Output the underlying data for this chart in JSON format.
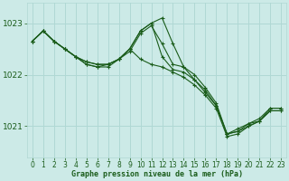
{
  "bg_color": "#cceae7",
  "grid_color": "#b0d8d4",
  "line_color": "#1a5c1a",
  "marker_color": "#1a5c1a",
  "xlabel": "Graphe pression niveau de la mer (hPa)",
  "xlabel_color": "#1a5c1a",
  "tick_color": "#1a5c1a",
  "series": [
    [
      1022.65,
      1022.85,
      1022.65,
      1022.5,
      1022.35,
      1022.25,
      1022.2,
      1022.2,
      1022.3,
      1022.5,
      1022.85,
      1023.0,
      1023.1,
      1022.6,
      1022.15,
      1021.9,
      1021.7,
      1021.4,
      1020.85,
      1020.95,
      1021.05,
      1021.15,
      1021.35,
      1021.35
    ],
    [
      1022.65,
      1022.85,
      1022.65,
      1022.5,
      1022.35,
      1022.25,
      1022.2,
      1022.2,
      1022.3,
      1022.5,
      1022.85,
      1023.0,
      1022.35,
      1022.1,
      1022.05,
      1021.9,
      1021.65,
      1021.4,
      1020.85,
      1020.9,
      1021.0,
      1021.1,
      1021.3,
      1021.3
    ],
    [
      1022.65,
      1022.85,
      1022.65,
      1022.5,
      1022.35,
      1022.2,
      1022.15,
      1022.2,
      1022.3,
      1022.5,
      1022.3,
      1022.2,
      1022.15,
      1022.05,
      1021.95,
      1021.8,
      1021.6,
      1021.35,
      1020.8,
      1020.85,
      1021.0,
      1021.1,
      1021.3,
      1021.3
    ],
    [
      1022.65,
      1022.85,
      1022.65,
      1022.5,
      1022.35,
      1022.2,
      1022.15,
      1022.15,
      1022.3,
      1022.45,
      1022.8,
      1022.95,
      1022.6,
      1022.2,
      1022.15,
      1022.0,
      1021.75,
      1021.45,
      1020.85,
      1020.9,
      1021.05,
      1021.1,
      1021.35,
      1021.35
    ]
  ],
  "yticks": [
    1021,
    1022,
    1023
  ],
  "ylim": [
    1020.4,
    1023.4
  ],
  "xlim": [
    -0.5,
    23.5
  ],
  "xticks": [
    0,
    1,
    2,
    3,
    4,
    5,
    6,
    7,
    8,
    9,
    10,
    11,
    12,
    13,
    14,
    15,
    16,
    17,
    18,
    19,
    20,
    21,
    22,
    23
  ],
  "figsize": [
    3.2,
    2.0
  ],
  "dpi": 100
}
